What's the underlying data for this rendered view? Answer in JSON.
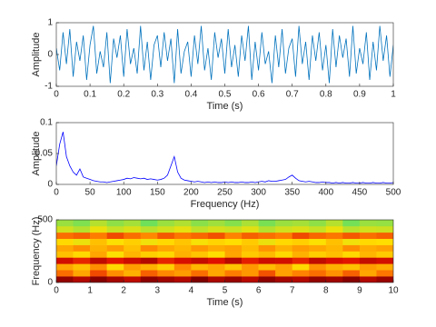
{
  "chart_data": [
    {
      "type": "line",
      "xlabel": "Time (s)",
      "ylabel": "Amplitude",
      "xlim": [
        0,
        1
      ],
      "ylim": [
        -1,
        1
      ],
      "xticks": [
        0,
        0.1,
        0.2,
        0.3,
        0.4,
        0.5,
        0.6,
        0.7,
        0.8,
        0.9,
        1
      ],
      "yticks": [
        -1,
        0,
        1
      ],
      "series": [
        {
          "color": "#0072bd",
          "x": [
            0,
            0.01,
            0.02,
            0.03,
            0.04,
            0.05,
            0.06,
            0.07,
            0.08,
            0.09,
            0.1,
            0.11,
            0.12,
            0.13,
            0.14,
            0.15,
            0.16,
            0.17,
            0.18,
            0.19,
            0.2,
            0.21,
            0.22,
            0.23,
            0.24,
            0.25,
            0.26,
            0.27,
            0.28,
            0.29,
            0.3,
            0.31,
            0.32,
            0.33,
            0.34,
            0.35,
            0.36,
            0.37,
            0.38,
            0.39,
            0.4,
            0.41,
            0.42,
            0.43,
            0.44,
            0.45,
            0.46,
            0.47,
            0.48,
            0.49,
            0.5,
            0.51,
            0.52,
            0.53,
            0.54,
            0.55,
            0.56,
            0.57,
            0.58,
            0.59,
            0.6,
            0.61,
            0.62,
            0.63,
            0.64,
            0.65,
            0.66,
            0.67,
            0.68,
            0.69,
            0.7,
            0.71,
            0.72,
            0.73,
            0.74,
            0.75,
            0.76,
            0.77,
            0.78,
            0.79,
            0.8,
            0.81,
            0.82,
            0.83,
            0.84,
            0.85,
            0.86,
            0.87,
            0.88,
            0.89,
            0.9,
            0.91,
            0.92,
            0.93,
            0.94,
            0.95,
            0.96,
            0.97,
            0.98,
            0.99,
            1
          ],
          "values": [
            0.2,
            -0.5,
            0.7,
            -0.3,
            0.8,
            -0.7,
            0.4,
            -0.2,
            0.6,
            -0.8,
            0.3,
            0.9,
            -0.6,
            0.1,
            -0.4,
            0.7,
            -0.9,
            0.5,
            -0.1,
            0.6,
            -0.7,
            0.8,
            -0.3,
            0.2,
            -0.6,
            0.9,
            -0.5,
            0.4,
            -0.8,
            0.3,
            0.6,
            -0.4,
            0.7,
            -0.2,
            0.5,
            -0.9,
            0.8,
            -0.6,
            0.1,
            0.4,
            -0.7,
            0.6,
            -0.3,
            0.9,
            -0.5,
            0.2,
            -0.8,
            0.7,
            -0.1,
            0.5,
            -0.6,
            0.8,
            -0.4,
            0.3,
            -0.7,
            0.6,
            -0.2,
            0.9,
            -0.8,
            0.4,
            -0.5,
            0.7,
            -0.3,
            0.1,
            -0.9,
            0.6,
            -0.4,
            0.8,
            -0.6,
            0.2,
            0.5,
            -0.7,
            0.9,
            -0.3,
            0.4,
            -0.8,
            0.6,
            -0.2,
            0.7,
            -0.5,
            0.3,
            -0.9,
            0.8,
            -0.4,
            0.6,
            -0.1,
            0.5,
            -0.7,
            0.9,
            -0.6,
            0.2,
            -0.3,
            0.7,
            -0.8,
            0.4,
            -0.5,
            0.9,
            -0.2,
            0.6,
            -0.7,
            0.3
          ]
        }
      ]
    },
    {
      "type": "line",
      "xlabel": "Frequency (Hz)",
      "ylabel": "Amplitude",
      "xlim": [
        0,
        500
      ],
      "ylim": [
        0,
        0.1
      ],
      "xticks": [
        0,
        50,
        100,
        150,
        200,
        250,
        300,
        350,
        400,
        450,
        500
      ],
      "yticks": [
        0,
        0.05,
        0.1
      ],
      "series": [
        {
          "color": "#0000ff",
          "x": [
            0,
            5,
            10,
            15,
            20,
            25,
            30,
            35,
            40,
            45,
            50,
            55,
            60,
            65,
            70,
            75,
            80,
            85,
            90,
            95,
            100,
            105,
            110,
            115,
            120,
            125,
            130,
            135,
            140,
            145,
            150,
            155,
            160,
            165,
            170,
            175,
            180,
            185,
            190,
            195,
            200,
            205,
            210,
            215,
            220,
            225,
            230,
            235,
            240,
            245,
            250,
            255,
            260,
            265,
            270,
            275,
            280,
            285,
            290,
            295,
            300,
            305,
            310,
            315,
            320,
            325,
            330,
            335,
            340,
            345,
            350,
            355,
            360,
            365,
            370,
            375,
            380,
            385,
            390,
            395,
            400,
            405,
            410,
            415,
            420,
            425,
            430,
            435,
            440,
            445,
            450,
            455,
            460,
            465,
            470,
            475,
            480,
            485,
            490,
            495,
            500
          ],
          "values": [
            0.03,
            0.065,
            0.085,
            0.045,
            0.03,
            0.02,
            0.015,
            0.025,
            0.012,
            0.01,
            0.008,
            0.006,
            0.005,
            0.004,
            0.004,
            0.003,
            0.004,
            0.005,
            0.006,
            0.007,
            0.008,
            0.01,
            0.009,
            0.011,
            0.01,
            0.009,
            0.01,
            0.008,
            0.009,
            0.008,
            0.007,
            0.008,
            0.01,
            0.015,
            0.03,
            0.045,
            0.02,
            0.01,
            0.007,
            0.006,
            0.005,
            0.004,
            0.005,
            0.004,
            0.003,
            0.004,
            0.003,
            0.004,
            0.003,
            0.003,
            0.004,
            0.003,
            0.004,
            0.003,
            0.003,
            0.004,
            0.003,
            0.003,
            0.004,
            0.003,
            0.004,
            0.005,
            0.004,
            0.006,
            0.005,
            0.005,
            0.006,
            0.007,
            0.008,
            0.012,
            0.015,
            0.01,
            0.006,
            0.005,
            0.004,
            0.005,
            0.004,
            0.003,
            0.003,
            0.004,
            0.003,
            0.003,
            0.002,
            0.003,
            0.002,
            0.003,
            0.002,
            0.002,
            0.003,
            0.002,
            0.002,
            0.003,
            0.002,
            0.002,
            0.003,
            0.002,
            0.002,
            0.003,
            0.002,
            0.002,
            0.003
          ]
        }
      ]
    },
    {
      "type": "heatmap",
      "xlabel": "Time (s)",
      "ylabel": "Frequency (Hz)",
      "xlim": [
        0,
        10
      ],
      "ylim": [
        0,
        500
      ],
      "xticks": [
        0,
        1,
        2,
        3,
        4,
        5,
        6,
        7,
        8,
        9,
        10
      ],
      "yticks": [
        0,
        500
      ],
      "x": [
        0.25,
        0.75,
        1.25,
        1.75,
        2.25,
        2.75,
        3.25,
        3.75,
        4.25,
        4.75,
        5.25,
        5.75,
        6.25,
        6.75,
        7.25,
        7.75,
        8.25,
        8.75,
        9.25,
        9.75
      ],
      "y": [
        25,
        75,
        125,
        175,
        225,
        275,
        325,
        375,
        425,
        475
      ],
      "values": [
        [
          0.95,
          0.9,
          0.97,
          0.92,
          0.88,
          0.96,
          0.93,
          0.9,
          0.98,
          0.91,
          0.94,
          0.89,
          0.96,
          0.92,
          0.9,
          0.95,
          0.93,
          0.97,
          0.9,
          0.94
        ],
        [
          0.7,
          0.6,
          0.75,
          0.65,
          0.58,
          0.72,
          0.66,
          0.62,
          0.7,
          0.6,
          0.68,
          0.63,
          0.74,
          0.61,
          0.67,
          0.7,
          0.64,
          0.72,
          0.6,
          0.69
        ],
        [
          0.6,
          0.55,
          0.65,
          0.5,
          0.62,
          0.58,
          0.52,
          0.66,
          0.57,
          0.6,
          0.54,
          0.63,
          0.56,
          0.61,
          0.5,
          0.64,
          0.58,
          0.55,
          0.62,
          0.59
        ],
        [
          0.85,
          0.8,
          0.88,
          0.82,
          0.86,
          0.9,
          0.8,
          0.84,
          0.87,
          0.83,
          0.89,
          0.81,
          0.86,
          0.85,
          0.8,
          0.88,
          0.84,
          0.82,
          0.87,
          0.85
        ],
        [
          0.55,
          0.5,
          0.6,
          0.48,
          0.57,
          0.52,
          0.5,
          0.58,
          0.54,
          0.49,
          0.6,
          0.53,
          0.56,
          0.5,
          0.58,
          0.52,
          0.55,
          0.5,
          0.57,
          0.53
        ],
        [
          0.6,
          0.65,
          0.58,
          0.62,
          0.55,
          0.66,
          0.6,
          0.57,
          0.63,
          0.59,
          0.61,
          0.56,
          0.64,
          0.58,
          0.62,
          0.6,
          0.57,
          0.65,
          0.59,
          0.61
        ],
        [
          0.5,
          0.45,
          0.55,
          0.48,
          0.52,
          0.46,
          0.5,
          0.54,
          0.47,
          0.51,
          0.49,
          0.53,
          0.45,
          0.5,
          0.52,
          0.48,
          0.55,
          0.46,
          0.5,
          0.49
        ],
        [
          0.7,
          0.72,
          0.68,
          0.75,
          0.7,
          0.66,
          0.73,
          0.69,
          0.71,
          0.74,
          0.67,
          0.72,
          0.7,
          0.68,
          0.75,
          0.71,
          0.69,
          0.73,
          0.7,
          0.72
        ],
        [
          0.4,
          0.35,
          0.45,
          0.38,
          0.42,
          0.36,
          0.4,
          0.44,
          0.37,
          0.41,
          0.39,
          0.43,
          0.35,
          0.4,
          0.42,
          0.38,
          0.45,
          0.36,
          0.4,
          0.39
        ],
        [
          0.3,
          0.25,
          0.35,
          0.28,
          0.32,
          0.22,
          0.3,
          0.34,
          0.27,
          0.31,
          0.26,
          0.33,
          0.24,
          0.3,
          0.32,
          0.28,
          0.35,
          0.23,
          0.3,
          0.29
        ]
      ]
    }
  ]
}
